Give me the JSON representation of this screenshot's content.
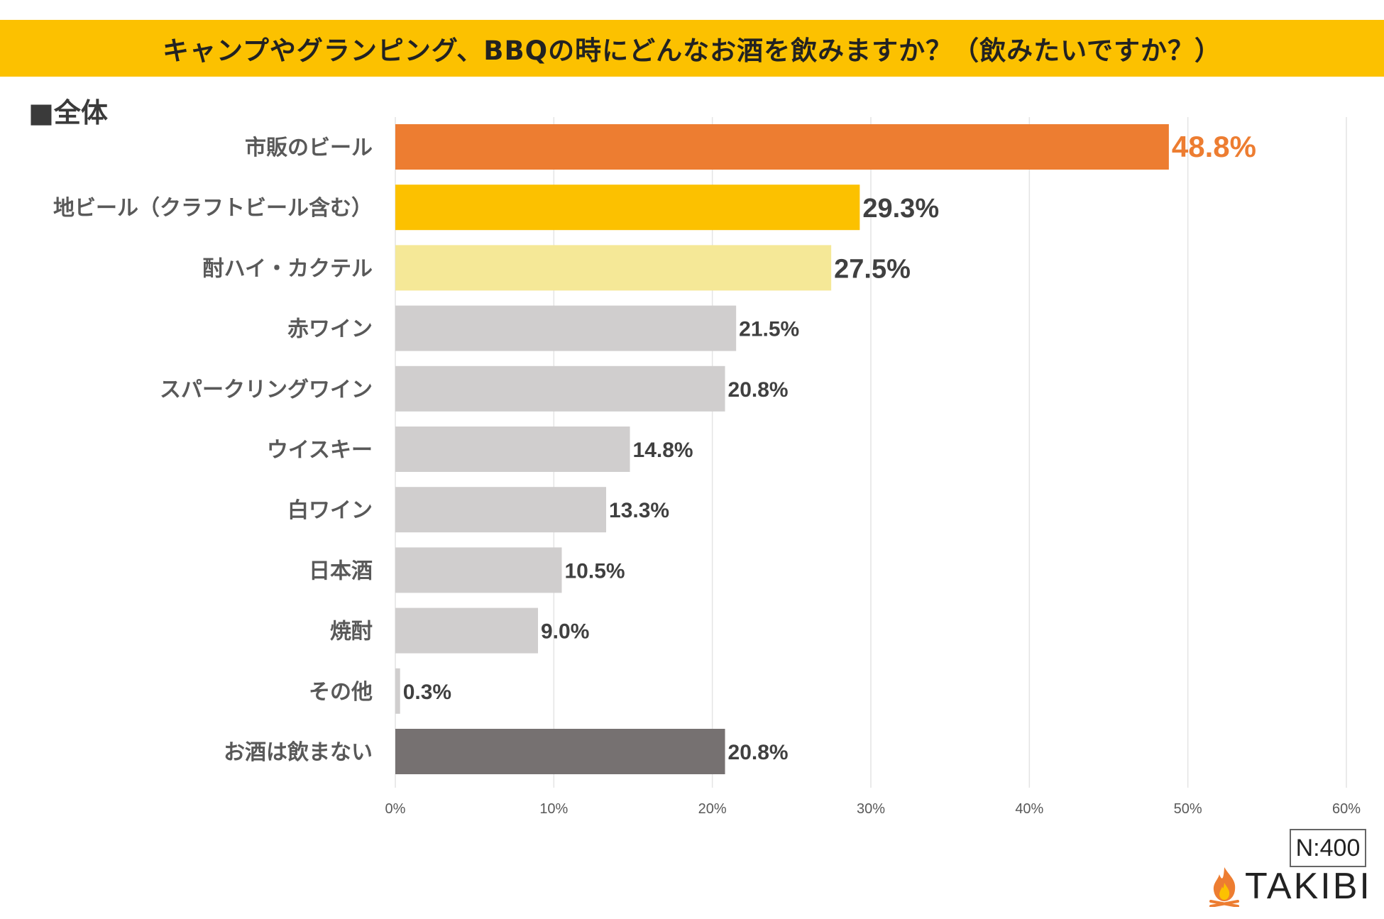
{
  "header": {
    "title": "キャンプやグランピング、BBQの時にどんなお酒を飲みますか？（飲みたいですか？）"
  },
  "subtitle": "■全体",
  "chart_data": {
    "type": "bar",
    "orientation": "horizontal",
    "categories": [
      "市販のビール",
      "地ビール（クラフトビール含む）",
      "酎ハイ・カクテル",
      "赤ワイン",
      "スパークリングワイン",
      "ウイスキー",
      "白ワイン",
      "日本酒",
      "焼酎",
      "その他",
      "お酒は飲まない"
    ],
    "values": [
      48.8,
      29.3,
      27.5,
      21.5,
      20.8,
      14.8,
      13.3,
      10.5,
      9.0,
      0.3,
      20.8
    ],
    "value_labels": [
      "48.8%",
      "29.3%",
      "27.5%",
      "21.5%",
      "20.8%",
      "14.8%",
      "13.3%",
      "10.5%",
      "9.0%",
      "0.3%",
      "20.8%"
    ],
    "bar_colors": [
      "#ED7D31",
      "#FCC100",
      "#F5E897",
      "#D0CECE",
      "#D0CECE",
      "#D0CECE",
      "#D0CECE",
      "#D0CECE",
      "#D0CECE",
      "#D0CECE",
      "#767171"
    ],
    "label_colors": [
      "#ED7D31",
      "#404040",
      "#404040",
      "#404040",
      "#404040",
      "#404040",
      "#404040",
      "#404040",
      "#404040",
      "#404040",
      "#404040"
    ],
    "xlim": [
      0,
      60
    ],
    "xticks": [
      0,
      10,
      20,
      30,
      40,
      50,
      60
    ],
    "xtick_labels": [
      "0%",
      "10%",
      "20%",
      "30%",
      "40%",
      "50%",
      "60%"
    ],
    "grid": true
  },
  "sample_size": "N:400",
  "logo": {
    "text": "TAKIBI",
    "icon": "campfire-icon",
    "color": "#ED7D31"
  }
}
